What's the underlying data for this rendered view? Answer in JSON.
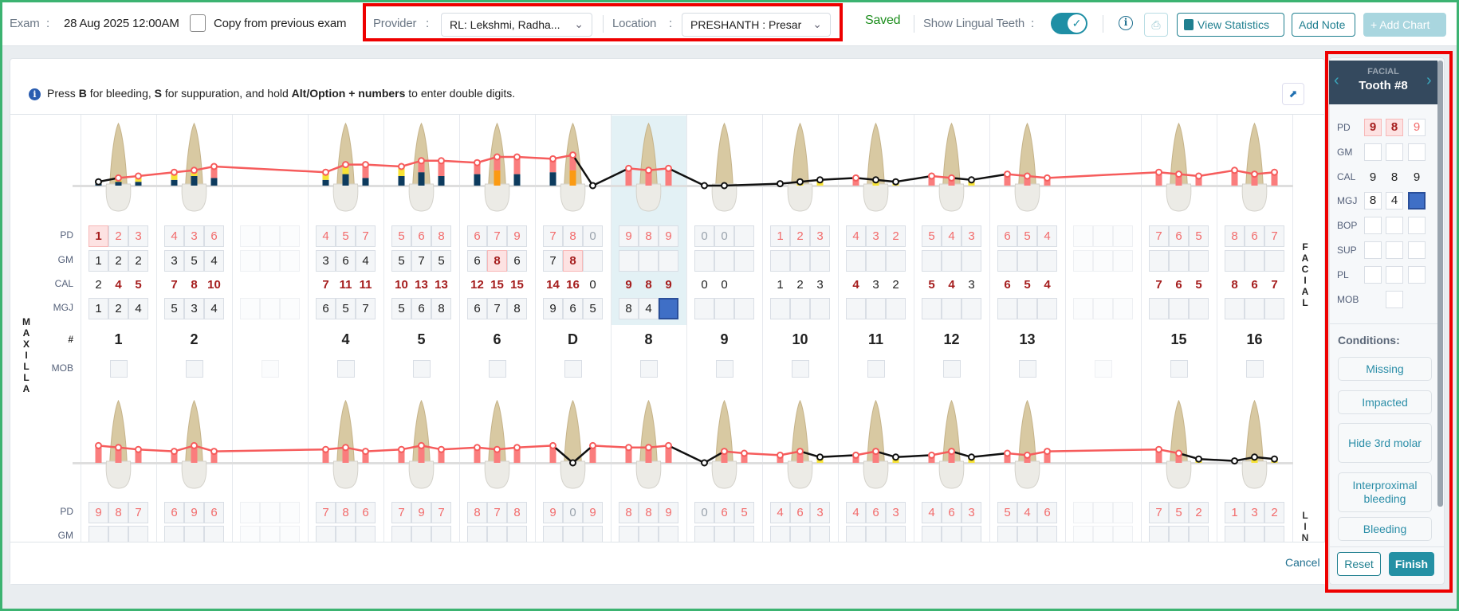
{
  "header": {
    "exam_label": "Exam",
    "sep": ":",
    "exam_date": "28 Aug 2025 12:00AM",
    "copy_label": "Copy from previous exam",
    "copy_checked": false,
    "provider_label": "Provider",
    "provider_value": "RL: Lekshmi, Radha...",
    "location_label": "Location",
    "location_value": "PRESHANTH : Presar",
    "status": "Saved",
    "lingual_label": "Show Lingual Teeth",
    "lingual_on": true,
    "view_stats": "View Statistics",
    "add_note": "Add Note",
    "add_chart": "Add Chart"
  },
  "hint": {
    "pre": "Press ",
    "key_b": "B",
    "mid1": " for bleeding, ",
    "key_s": "S",
    "mid2": " for suppuration, and hold ",
    "combo": "Alt/Option + numbers",
    "post": " to enter double digits."
  },
  "row_labels": {
    "pd": "PD",
    "gm": "GM",
    "cal": "CAL",
    "mgj": "MGJ",
    "num": "#",
    "mob": "MOB"
  },
  "arch_label": "MAXILLA",
  "side_facial": "FACIAL",
  "side_lingual": "LIN",
  "selected_tooth": "8",
  "teeth": [
    {
      "number": "1",
      "missing": false,
      "facial": {
        "pd": [
          "1",
          "2",
          "3"
        ],
        "gm": [
          "1",
          "2",
          "2"
        ],
        "cal": [
          "2",
          "4",
          "5"
        ],
        "mgj": [
          "1",
          "2",
          "4"
        ]
      },
      "lingual": {
        "pd": [
          "9",
          "8",
          "7"
        ]
      },
      "highlight": {
        "pd": [
          0
        ]
      }
    },
    {
      "number": "2",
      "missing": false,
      "facial": {
        "pd": [
          "4",
          "3",
          "6"
        ],
        "gm": [
          "3",
          "5",
          "4"
        ],
        "cal": [
          "7",
          "8",
          "10"
        ],
        "mgj": [
          "5",
          "3",
          "4"
        ]
      },
      "lingual": {
        "pd": [
          "6",
          "9",
          "6"
        ]
      }
    },
    {
      "number": "",
      "missing": true,
      "facial": {
        "pd": [
          "",
          "",
          ""
        ],
        "gm": [
          "",
          "",
          ""
        ],
        "cal": [
          "",
          "",
          ""
        ],
        "mgj": [
          "",
          "",
          ""
        ]
      },
      "lingual": {
        "pd": [
          "",
          "",
          ""
        ]
      }
    },
    {
      "number": "4",
      "missing": false,
      "facial": {
        "pd": [
          "4",
          "5",
          "7"
        ],
        "gm": [
          "3",
          "6",
          "4"
        ],
        "cal": [
          "7",
          "11",
          "11"
        ],
        "mgj": [
          "6",
          "5",
          "7"
        ]
      },
      "lingual": {
        "pd": [
          "7",
          "8",
          "6"
        ]
      }
    },
    {
      "number": "5",
      "missing": false,
      "facial": {
        "pd": [
          "5",
          "6",
          "8"
        ],
        "gm": [
          "5",
          "7",
          "5"
        ],
        "cal": [
          "10",
          "13",
          "13"
        ],
        "mgj": [
          "5",
          "6",
          "8"
        ]
      },
      "lingual": {
        "pd": [
          "7",
          "9",
          "7"
        ]
      }
    },
    {
      "number": "6",
      "missing": false,
      "facial": {
        "pd": [
          "6",
          "7",
          "9"
        ],
        "gm": [
          "6",
          "8",
          "6"
        ],
        "cal": [
          "12",
          "15",
          "15"
        ],
        "mgj": [
          "6",
          "7",
          "8"
        ]
      },
      "lingual": {
        "pd": [
          "8",
          "7",
          "8"
        ]
      },
      "highlight": {
        "gm": [
          1
        ]
      }
    },
    {
      "number": "D",
      "missing": false,
      "facial": {
        "pd": [
          "7",
          "8",
          "0"
        ],
        "gm": [
          "7",
          "8",
          ""
        ],
        "cal": [
          "14",
          "16",
          "0"
        ],
        "mgj": [
          "9",
          "6",
          "5"
        ]
      },
      "lingual": {
        "pd": [
          "9",
          "0",
          "9"
        ]
      },
      "highlight": {
        "gm": [
          1
        ]
      }
    },
    {
      "number": "8",
      "missing": false,
      "facial": {
        "pd": [
          "9",
          "8",
          "9"
        ],
        "gm": [
          "",
          "",
          ""
        ],
        "cal": [
          "9",
          "8",
          "9"
        ],
        "mgj": [
          "8",
          "4",
          ""
        ]
      },
      "lingual": {
        "pd": [
          "8",
          "8",
          "9"
        ]
      },
      "highlight": {
        "mgj_selected": [
          2
        ]
      }
    },
    {
      "number": "9",
      "missing": false,
      "facial": {
        "pd": [
          "0",
          "0",
          ""
        ],
        "gm": [
          "",
          "",
          ""
        ],
        "cal": [
          "0",
          "0",
          ""
        ],
        "mgj": [
          "",
          "",
          ""
        ]
      },
      "lingual": {
        "pd": [
          "0",
          "6",
          "5"
        ]
      }
    },
    {
      "number": "10",
      "missing": false,
      "facial": {
        "pd": [
          "1",
          "2",
          "3"
        ],
        "gm": [
          "",
          "",
          ""
        ],
        "cal": [
          "1",
          "2",
          "3"
        ],
        "mgj": [
          "",
          "",
          ""
        ]
      },
      "lingual": {
        "pd": [
          "4",
          "6",
          "3"
        ]
      }
    },
    {
      "number": "11",
      "missing": false,
      "facial": {
        "pd": [
          "4",
          "3",
          "2"
        ],
        "gm": [
          "",
          "",
          ""
        ],
        "cal": [
          "4",
          "3",
          "2"
        ],
        "mgj": [
          "",
          "",
          ""
        ]
      },
      "lingual": {
        "pd": [
          "4",
          "6",
          "3"
        ]
      }
    },
    {
      "number": "12",
      "missing": false,
      "facial": {
        "pd": [
          "5",
          "4",
          "3"
        ],
        "gm": [
          "",
          "",
          ""
        ],
        "cal": [
          "5",
          "4",
          "3"
        ],
        "mgj": [
          "",
          "",
          ""
        ]
      },
      "lingual": {
        "pd": [
          "4",
          "6",
          "3"
        ]
      }
    },
    {
      "number": "13",
      "missing": false,
      "facial": {
        "pd": [
          "6",
          "5",
          "4"
        ],
        "gm": [
          "",
          "",
          ""
        ],
        "cal": [
          "6",
          "5",
          "4"
        ],
        "mgj": [
          "",
          "",
          ""
        ]
      },
      "lingual": {
        "pd": [
          "5",
          "4",
          "6"
        ]
      }
    },
    {
      "number": "",
      "missing": true,
      "facial": {
        "pd": [
          "",
          "",
          ""
        ],
        "gm": [
          "",
          "",
          ""
        ],
        "cal": [
          "",
          "",
          ""
        ],
        "mgj": [
          "",
          "",
          ""
        ]
      },
      "lingual": {
        "pd": [
          "",
          "",
          ""
        ]
      }
    },
    {
      "number": "15",
      "missing": false,
      "facial": {
        "pd": [
          "7",
          "6",
          "5"
        ],
        "gm": [
          "",
          "",
          ""
        ],
        "cal": [
          "7",
          "6",
          "5"
        ],
        "mgj": [
          "",
          "",
          ""
        ]
      },
      "lingual": {
        "pd": [
          "7",
          "5",
          "2"
        ]
      }
    },
    {
      "number": "16",
      "missing": false,
      "facial": {
        "pd": [
          "8",
          "6",
          "7"
        ],
        "gm": [
          "",
          "",
          ""
        ],
        "cal": [
          "8",
          "6",
          "7"
        ],
        "mgj": [
          "",
          "",
          ""
        ]
      },
      "lingual": {
        "pd": [
          "1",
          "3",
          "2"
        ]
      }
    }
  ],
  "panel": {
    "surface": "FACIAL",
    "title": "Tooth #8",
    "rows": {
      "pd": "PD",
      "gm": "GM",
      "cal": "CAL",
      "mgj": "MGJ",
      "bop": "BOP",
      "sup": "SUP",
      "pl": "PL",
      "mob": "MOB"
    },
    "pd": [
      "9",
      "8",
      "9"
    ],
    "pd_highlight": [
      0,
      1
    ],
    "cal": [
      "9",
      "8",
      "9"
    ],
    "mgj": [
      "8",
      "4",
      ""
    ],
    "conditions_label": "Conditions:",
    "conditions": [
      "Missing",
      "Impacted",
      "Hide 3rd molar",
      "Interproximal bleeding",
      "Bleeding"
    ],
    "reset": "Reset",
    "finish": "Finish"
  },
  "footer": {
    "cancel": "Cancel"
  },
  "colors": {
    "accent": "#2490a4",
    "line_red": "#f65c5c",
    "bar_red": "#fa7d7d",
    "bar_yellow": "#f7e235",
    "bar_navy": "#0d3b5e",
    "bar_orange": "#fb9a12",
    "selected_column": "#e3f1f5",
    "saved": "#1e8e1e"
  }
}
